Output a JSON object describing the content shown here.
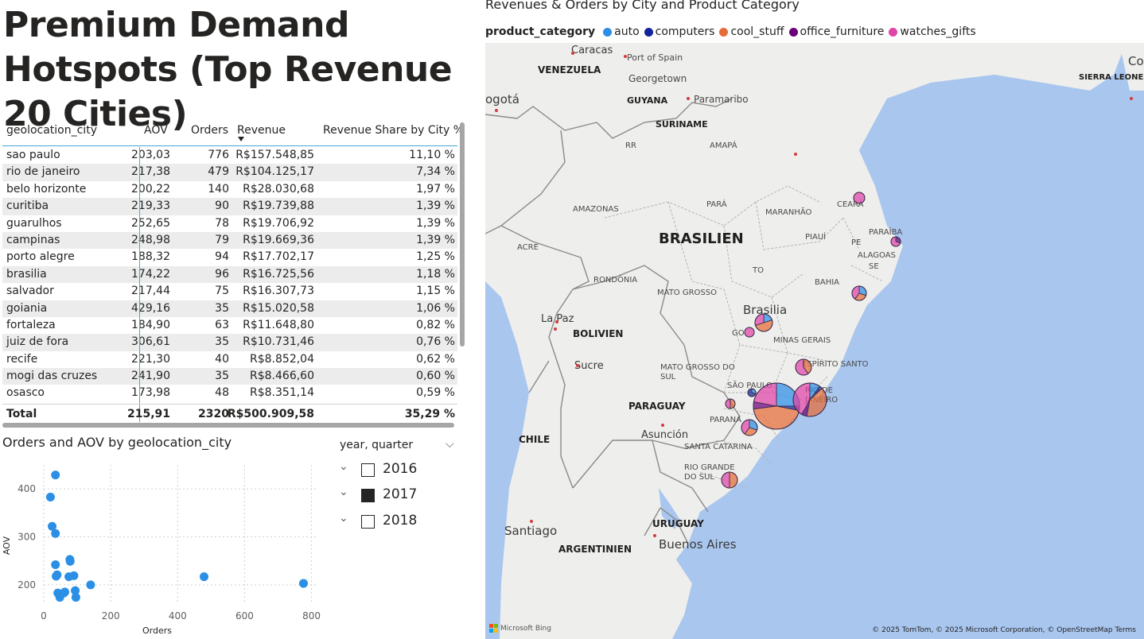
{
  "page_title": "Premium Demand Hotspots (Top Revenue 20 Cities)",
  "table": {
    "columns": [
      "geolocation_city",
      "AOV",
      "Orders",
      "Revenue",
      "Revenue Share by City %"
    ],
    "rows": [
      [
        "sao paulo",
        "203,03",
        "776",
        "R$157.548,85",
        "11,10 %"
      ],
      [
        "rio de janeiro",
        "217,38",
        "479",
        "R$104.125,17",
        "7,34 %"
      ],
      [
        "belo horizonte",
        "200,22",
        "140",
        "R$28.030,68",
        "1,97 %"
      ],
      [
        "curitiba",
        "219,33",
        "90",
        "R$19.739,88",
        "1,39 %"
      ],
      [
        "guarulhos",
        "252,65",
        "78",
        "R$19.706,92",
        "1,39 %"
      ],
      [
        "campinas",
        "248,98",
        "79",
        "R$19.669,36",
        "1,39 %"
      ],
      [
        "porto alegre",
        "188,32",
        "94",
        "R$17.702,17",
        "1,25 %"
      ],
      [
        "brasilia",
        "174,22",
        "96",
        "R$16.725,56",
        "1,18 %"
      ],
      [
        "salvador",
        "217,44",
        "75",
        "R$16.307,73",
        "1,15 %"
      ],
      [
        "goiania",
        "429,16",
        "35",
        "R$15.020,58",
        "1,06 %"
      ],
      [
        "fortaleza",
        "184,90",
        "63",
        "R$11.648,80",
        "0,82 %"
      ],
      [
        "juiz de fora",
        "306,61",
        "35",
        "R$10.731,46",
        "0,76 %"
      ],
      [
        "recife",
        "221,30",
        "40",
        "R$8.852,04",
        "0,62 %"
      ],
      [
        "mogi das cruzes",
        "241,90",
        "35",
        "R$8.466,60",
        "0,60 %"
      ],
      [
        "osasco",
        "173,98",
        "48",
        "R$8.351,14",
        "0,59 %"
      ]
    ],
    "total": [
      "Total",
      "215,91",
      "2320",
      "R$500.909,58",
      "35,29 %"
    ],
    "sort_column": "Revenue"
  },
  "scatter": {
    "title": "Orders and AOV by geolocation_city",
    "point_color": "#2b8fe6"
  },
  "chart_data": {
    "type": "scatter",
    "title": "Orders and AOV by geolocation_city",
    "xlabel": "Orders",
    "ylabel": "AOV",
    "xlim": [
      0,
      820
    ],
    "ylim": [
      160,
      450
    ],
    "xticks": [
      0,
      200,
      400,
      600,
      800
    ],
    "yticks": [
      200,
      300,
      400
    ],
    "points": [
      {
        "x": 776,
        "y": 203
      },
      {
        "x": 479,
        "y": 217
      },
      {
        "x": 140,
        "y": 200
      },
      {
        "x": 90,
        "y": 219
      },
      {
        "x": 78,
        "y": 253
      },
      {
        "x": 79,
        "y": 249
      },
      {
        "x": 94,
        "y": 188
      },
      {
        "x": 96,
        "y": 174
      },
      {
        "x": 75,
        "y": 217
      },
      {
        "x": 35,
        "y": 429
      },
      {
        "x": 63,
        "y": 185
      },
      {
        "x": 35,
        "y": 307
      },
      {
        "x": 40,
        "y": 221
      },
      {
        "x": 35,
        "y": 242
      },
      {
        "x": 48,
        "y": 174
      },
      {
        "x": 20,
        "y": 383
      },
      {
        "x": 25,
        "y": 322
      },
      {
        "x": 37,
        "y": 218
      },
      {
        "x": 42,
        "y": 183
      },
      {
        "x": 60,
        "y": 183
      }
    ]
  },
  "slicer": {
    "title": "year, quarter",
    "items": [
      {
        "label": "2016",
        "checked": false
      },
      {
        "label": "2017",
        "checked": true
      },
      {
        "label": "2018",
        "checked": false
      }
    ]
  },
  "map": {
    "title": "Revenues & Orders by City and Product Category",
    "legend_title": "product_category",
    "legend": [
      {
        "label": "auto",
        "color": "#2b8fe6"
      },
      {
        "label": "computers",
        "color": "#12239e"
      },
      {
        "label": "cool_stuff",
        "color": "#e66c37"
      },
      {
        "label": "office_furniture",
        "color": "#6b007b"
      },
      {
        "label": "watches_gifts",
        "color": "#e044a7"
      }
    ],
    "labels": {
      "caracas": "Caracas",
      "port_of_spain": "Port of Spain",
      "venezuela": "VENEZUELA",
      "georgetown": "Georgetown",
      "guyana": "GUYANA",
      "paramaribo": "Paramaribo",
      "suriname": "SURINAME",
      "bogota": "ogotá",
      "rr": "RR",
      "amapa": "AMAPÁ",
      "amazonas": "AMAZONAS",
      "para": "PARÁ",
      "maranhao": "MARANHÃO",
      "ceara": "CEARÁ",
      "paraiba": "PARAÍBA",
      "brasilien": "BRASILIEN",
      "piaui": "PIAUÍ",
      "pe": "PE",
      "alagoas": "ALAGOAS",
      "se": "SE",
      "acre": "ACRE",
      "rondonia": "RONDÔNIA",
      "to": "TO",
      "bahia": "BAHIA",
      "mato_grosso": "MATO GROSSO",
      "brasilia": "Brasilia",
      "la_paz": "La Paz",
      "bolivien": "BOLIVIEN",
      "go": "GO",
      "minas_gerais": "MINAS GERAIS",
      "sucre": "Sucre",
      "mato_grosso_do_sul": "MATO GROSSO DO SUL",
      "espirito_santo": "ESPÍRITO SANTO",
      "sao_paulo": "SÃO PAULO",
      "rio_de_janeiro": "RIO DE JANEIRO",
      "paraguay": "PARAGUAY",
      "parana": "PARANÁ",
      "asuncion": "Asunción",
      "santa_catarina": "SANTA CATARINA",
      "chile": "CHILE",
      "rio_grande_do_sul": "RIO GRANDE DO SUL",
      "uruguay": "URUGUAY",
      "santiago": "Santiago",
      "buenos_aires": "Buenos Aires",
      "argentinien": "ARGENTINIEN",
      "sierra_leone": "SIERRA LEONE",
      "conakry": "Cona"
    },
    "attribution": "© 2025 TomTom, © 2025 Microsoft Corporation, © OpenStreetMap  Terms",
    "bing": "Microsoft Bing"
  }
}
